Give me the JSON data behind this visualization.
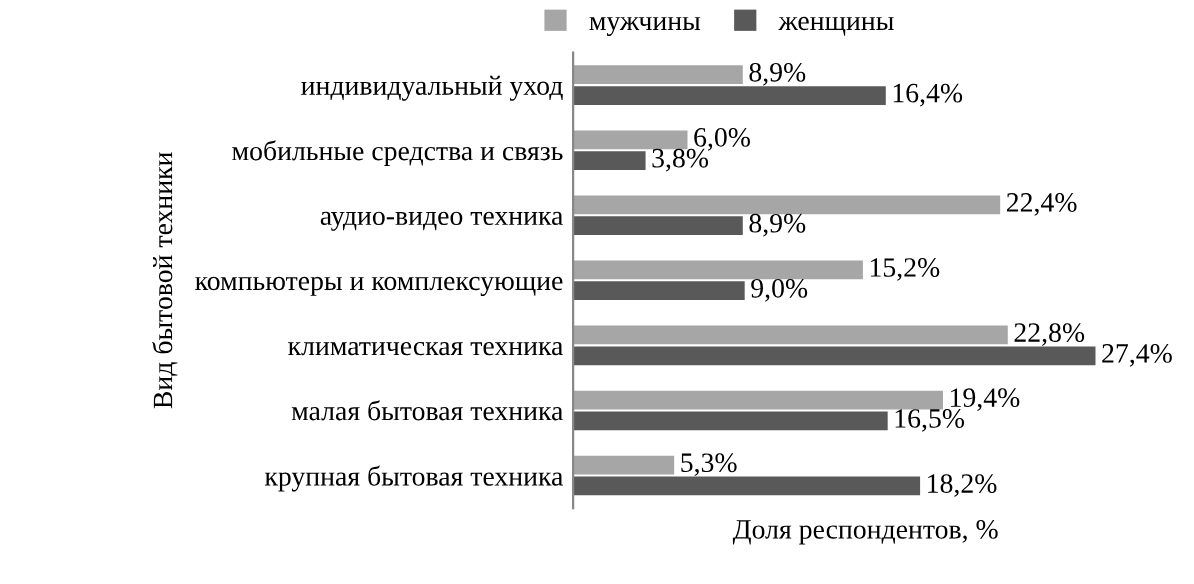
{
  "chart_data": {
    "type": "bar",
    "orientation": "horizontal",
    "xlabel": "Доля респондентов, %",
    "ylabel": "Вид бытовой техники",
    "legend": "top",
    "grid": false,
    "categories": [
      "индивидуальный уход",
      "мобильные средства и связь",
      "аудио-видео техника",
      "компьютеры и комплексующие",
      "климатическая техника",
      "малая бытовая техника",
      "крупная бытовая техника"
    ],
    "series": [
      {
        "name": "мужчины",
        "color": "#a6a6a6",
        "values": [
          8.9,
          6.0,
          22.4,
          15.2,
          22.8,
          19.4,
          5.3
        ],
        "value_labels": [
          "8,9%",
          "6,0%",
          "22,4%",
          "15,2%",
          "22,8%",
          "19,4%",
          "5,3%"
        ]
      },
      {
        "name": "женщины",
        "color": "#595959",
        "values": [
          16.4,
          3.8,
          8.9,
          9.0,
          27.4,
          16.5,
          18.2
        ],
        "value_labels": [
          "16,4%",
          "3,8%",
          "8,9%",
          "9,0%",
          "27,4%",
          "16,5%",
          "18,2%"
        ]
      }
    ]
  }
}
